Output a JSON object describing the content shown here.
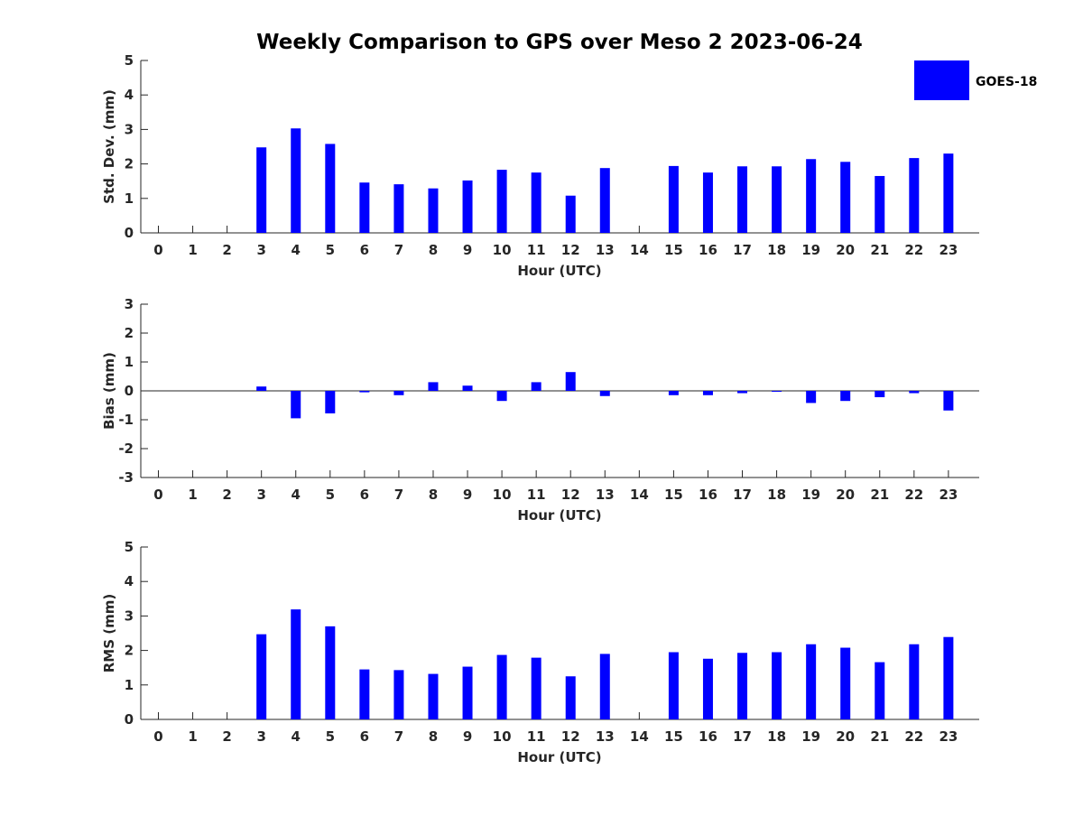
{
  "chart_data": {
    "title": "Weekly Comparison to GPS over Meso 2 2023-06-24",
    "legend": {
      "label": "GOES-18",
      "color": "#0000ff",
      "placement": "top-right"
    },
    "bar_color": "#0000ff",
    "categories": [
      "0",
      "1",
      "2",
      "3",
      "4",
      "5",
      "6",
      "7",
      "8",
      "9",
      "10",
      "11",
      "12",
      "13",
      "14",
      "15",
      "16",
      "17",
      "18",
      "19",
      "20",
      "21",
      "22",
      "23"
    ],
    "panels": [
      {
        "type": "bar",
        "ylabel": "Std. Dev. (mm)",
        "xlabel": "Hour (UTC)",
        "ylim": [
          0,
          5
        ],
        "yticks": [
          "0",
          "1",
          "2",
          "3",
          "4",
          "5"
        ],
        "values": [
          null,
          null,
          null,
          2.48,
          3.03,
          2.58,
          1.46,
          1.41,
          1.29,
          1.52,
          1.83,
          1.75,
          1.08,
          1.88,
          null,
          1.94,
          1.75,
          1.93,
          1.93,
          2.14,
          2.06,
          1.65,
          2.17,
          2.3
        ]
      },
      {
        "type": "bar",
        "ylabel": "Bias (mm)",
        "xlabel": "Hour (UTC)",
        "ylim": [
          -3,
          3
        ],
        "yticks": [
          "-3",
          "-2",
          "-1",
          "0",
          "1",
          "2",
          "3"
        ],
        "values": [
          null,
          null,
          null,
          0.15,
          -0.95,
          -0.78,
          -0.05,
          -0.15,
          0.3,
          0.18,
          -0.35,
          0.3,
          0.65,
          -0.18,
          null,
          -0.15,
          -0.15,
          -0.08,
          -0.02,
          -0.42,
          -0.35,
          -0.22,
          -0.08,
          -0.68
        ]
      },
      {
        "type": "bar",
        "ylabel": "RMS (mm)",
        "xlabel": "Hour (UTC)",
        "ylim": [
          0,
          5
        ],
        "yticks": [
          "0",
          "1",
          "2",
          "3",
          "4",
          "5"
        ],
        "values": [
          null,
          null,
          null,
          2.47,
          3.19,
          2.7,
          1.45,
          1.43,
          1.32,
          1.53,
          1.87,
          1.79,
          1.25,
          1.9,
          null,
          1.95,
          1.76,
          1.93,
          1.95,
          2.18,
          2.08,
          1.66,
          2.18,
          2.39
        ]
      }
    ]
  }
}
